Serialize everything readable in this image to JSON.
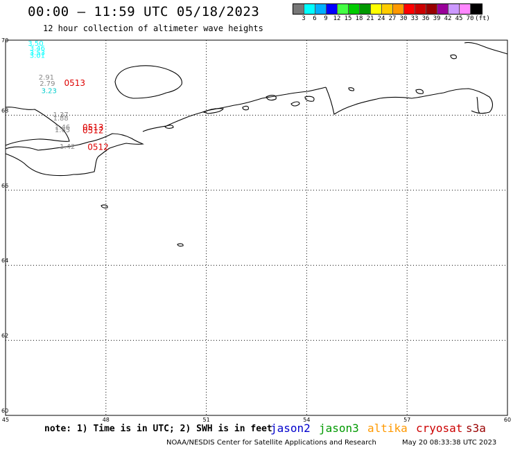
{
  "header": {
    "title": "00:00 – 11:59 UTC 05/18/2023",
    "subtitle": "12 hour collection of altimeter wave heights"
  },
  "colorbar": {
    "colors": [
      "#777777",
      "#00ffff",
      "#00b0ff",
      "#0000ff",
      "#44ff44",
      "#00cc00",
      "#009900",
      "#ffff00",
      "#ffcc00",
      "#ff9900",
      "#ff0000",
      "#cc0000",
      "#990000",
      "#990099",
      "#cc99ff",
      "#ff88ff",
      "#000000"
    ],
    "labels": [
      "3",
      "6",
      "9",
      "12",
      "15",
      "18",
      "21",
      "24",
      "27",
      "30",
      "33",
      "36",
      "39",
      "42",
      "45",
      "70",
      "(ft)"
    ]
  },
  "map": {
    "lat_labels": [
      "70",
      "68",
      "66",
      "64",
      "62",
      "60"
    ],
    "lon_labels": [
      "45",
      "48",
      "51",
      "54",
      "57",
      "60"
    ],
    "observations": [
      {
        "lon": 45.9,
        "lat": 69.85,
        "value": "3.50",
        "color": "#00ffff"
      },
      {
        "lon": 45.95,
        "lat": 69.72,
        "value": "3.46",
        "color": "#00ffff"
      },
      {
        "lon": 45.95,
        "lat": 69.6,
        "value": "3.53",
        "color": "#00ffff"
      },
      {
        "lon": 45.95,
        "lat": 69.53,
        "value": "3.01",
        "color": "#00ffff"
      },
      {
        "lon": 46.22,
        "lat": 68.95,
        "value": "2.91",
        "color": "#888888"
      },
      {
        "lon": 46.25,
        "lat": 68.78,
        "value": "2.79",
        "color": "#888888"
      },
      {
        "lon": 46.3,
        "lat": 68.59,
        "value": "3.23",
        "color": "#00cccc"
      },
      {
        "lon": 46.65,
        "lat": 67.95,
        "value": "1.37",
        "color": "#888888"
      },
      {
        "lon": 46.65,
        "lat": 67.86,
        "value": "1.88",
        "color": "#888888"
      },
      {
        "lon": 46.7,
        "lat": 67.62,
        "value": "1.46",
        "color": "#888888"
      },
      {
        "lon": 46.7,
        "lat": 67.55,
        "value": "1.65",
        "color": "#888888"
      },
      {
        "lon": 46.85,
        "lat": 67.1,
        "value": "1.42",
        "color": "#888888"
      }
    ],
    "time_labels": [
      {
        "lon": 46.75,
        "lat": 68.78,
        "text": "0513"
      },
      {
        "lon": 47.3,
        "lat": 67.6,
        "text": "0513"
      },
      {
        "lon": 47.3,
        "lat": 67.52,
        "text": "0512"
      },
      {
        "lon": 47.45,
        "lat": 67.08,
        "text": "0512"
      }
    ]
  },
  "footer": {
    "note": "note: 1) Time is in UTC; 2) SWH is in feet",
    "satellites": [
      {
        "name": "jason2",
        "color": "#0000cc"
      },
      {
        "name": "jason3",
        "color": "#009900"
      },
      {
        "name": "altika",
        "color": "#ff9900"
      },
      {
        "name": "cryosat",
        "color": "#cc0000"
      },
      {
        "name": "s3a",
        "color": "#990000"
      }
    ],
    "credit": "NOAA/NESDIS Center for Satellite Applications and Research",
    "timestamp": "May 20 08:33:38 UTC 2023"
  }
}
